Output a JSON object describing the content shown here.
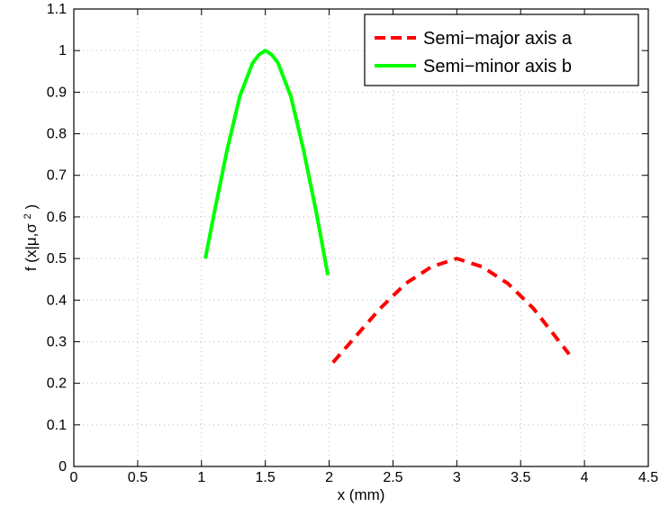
{
  "chart_data": {
    "type": "line",
    "title": "",
    "xlabel": "x (mm)",
    "ylabel": {
      "prefix": "f (x|μ,σ",
      "superscript": "2",
      "suffix": ")"
    },
    "xlim": [
      0,
      4.5
    ],
    "ylim": [
      0,
      1.1
    ],
    "x_ticks": [
      "0",
      "0.5",
      "1",
      "1.5",
      "2",
      "2.5",
      "3",
      "3.5",
      "4",
      "4.5"
    ],
    "y_ticks": [
      "0",
      "0.1",
      "0.2",
      "0.3",
      "0.4",
      "0.5",
      "0.6",
      "0.7",
      "0.8",
      "0.9",
      "1",
      "1.1"
    ],
    "grid": true,
    "legend_position": "top-right",
    "colors": {
      "major": "#ff0000",
      "minor": "#00ff00",
      "axis": "#000000",
      "grid": "#b8b8b8"
    },
    "series": [
      {
        "name": "Semi−major axis a",
        "line_style": "dashed",
        "x": [
          2.03,
          2.2,
          2.4,
          2.6,
          2.8,
          3.0,
          3.2,
          3.4,
          3.6,
          3.88
        ],
        "y": [
          0.25,
          0.31,
          0.38,
          0.44,
          0.48,
          0.5,
          0.48,
          0.44,
          0.38,
          0.27
        ]
      },
      {
        "name": "Semi−minor axis b",
        "line_style": "solid",
        "x": [
          1.03,
          1.1,
          1.2,
          1.3,
          1.4,
          1.45,
          1.5,
          1.55,
          1.6,
          1.7,
          1.8,
          1.9,
          1.99
        ],
        "y": [
          0.5,
          0.61,
          0.76,
          0.89,
          0.97,
          0.99,
          1.0,
          0.99,
          0.97,
          0.89,
          0.76,
          0.61,
          0.46
        ]
      }
    ]
  }
}
